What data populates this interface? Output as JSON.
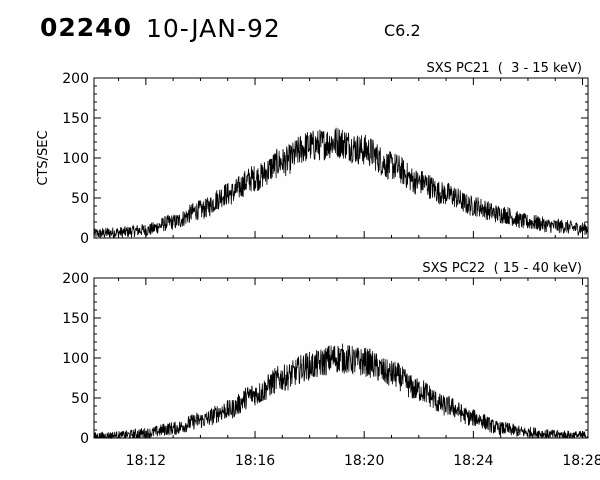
{
  "header": {
    "event_id": "02240",
    "date": "10-JAN-92",
    "flare_class": "C6.2"
  },
  "chart_data": [
    {
      "type": "line",
      "title": "SXS PC21  (  3 - 15 keV)",
      "ylabel": "CTS/SEC",
      "xlabel": "",
      "ylim": [
        0,
        200
      ],
      "yticks": [
        0,
        50,
        100,
        150,
        200
      ],
      "xlim_minutes": [
        10.1,
        28.2
      ],
      "xticks": [
        "18:12",
        "18:16",
        "18:20",
        "18:24",
        "18:28"
      ],
      "show_xtick_labels": false,
      "series": [
        {
          "x": [
            "18:10",
            "18:11",
            "18:12",
            "18:13",
            "18:14",
            "18:15",
            "18:16",
            "18:17",
            "18:18",
            "18:19",
            "18:20",
            "18:21",
            "18:22",
            "18:23",
            "18:24",
            "18:25",
            "18:26",
            "18:27",
            "18:28"
          ],
          "values": [
            5,
            7,
            10,
            20,
            35,
            55,
            75,
            95,
            115,
            120,
            110,
            90,
            70,
            55,
            40,
            30,
            20,
            15,
            12
          ]
        }
      ]
    },
    {
      "type": "line",
      "title": "SXS PC22  ( 15 - 40 keV)",
      "ylabel": "",
      "xlabel": "",
      "ylim": [
        0,
        200
      ],
      "yticks": [
        0,
        50,
        100,
        150,
        200
      ],
      "xlim_minutes": [
        10.1,
        28.2
      ],
      "xticks": [
        "18:12",
        "18:16",
        "18:20",
        "18:24",
        "18:28"
      ],
      "show_xtick_labels": true,
      "series": [
        {
          "x": [
            "18:10",
            "18:11",
            "18:12",
            "18:13",
            "18:14",
            "18:15",
            "18:16",
            "18:17",
            "18:18",
            "18:19",
            "18:20",
            "18:21",
            "18:22",
            "18:23",
            "18:24",
            "18:25",
            "18:26",
            "18:27",
            "18:28"
          ],
          "values": [
            2,
            3,
            6,
            12,
            22,
            35,
            55,
            75,
            90,
            100,
            95,
            80,
            60,
            40,
            25,
            12,
            7,
            4,
            3
          ]
        }
      ]
    }
  ]
}
